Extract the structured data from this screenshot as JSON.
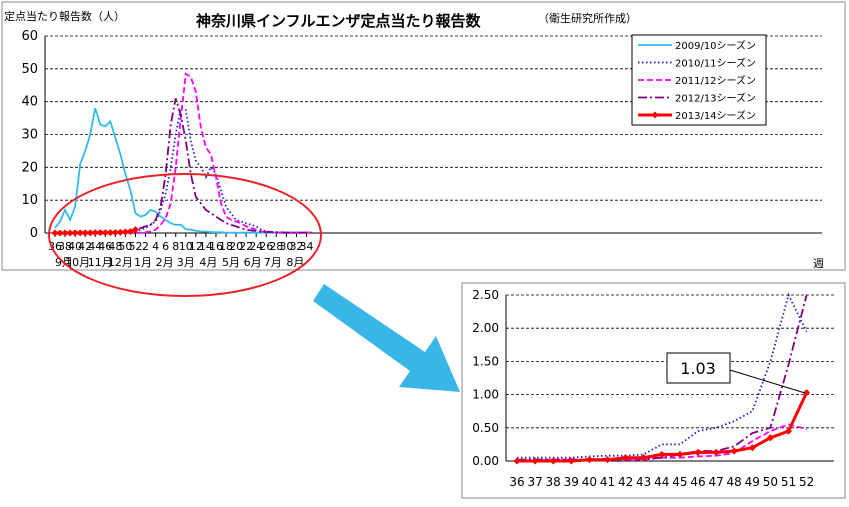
{
  "title": "神奈川県インフルエンザ定点当たり報告数",
  "subtitle": "（衛生研究所作成）",
  "y_axis_label": "定点当たり報告数（人）",
  "x_axis_unit": "週",
  "callout_value": "1.03",
  "colors": {
    "s2009": "#33bbe8",
    "s2010": "#1f1fbf",
    "s2011": "#ff00ff",
    "s2012": "#800080",
    "s2013": "#ff0000",
    "arrow": "#38b6e8",
    "ellipse": "#e8242a"
  },
  "chart_data": [
    {
      "type": "line",
      "x_ticks": [
        "36",
        "38",
        "40",
        "42",
        "44",
        "46",
        "48",
        "50",
        "52",
        "2",
        "4",
        "6",
        "8",
        "10",
        "12",
        "14",
        "16",
        "18",
        "20",
        "22",
        "24",
        "26",
        "28",
        "30",
        "32",
        "34"
      ],
      "month_labels": [
        {
          "label": "9月",
          "week_index": 0
        },
        {
          "label": "10月",
          "week_index": 4.5
        },
        {
          "label": "11月",
          "week_index": 9
        },
        {
          "label": "12月",
          "week_index": 13
        },
        {
          "label": "1月",
          "week_index": 17.5
        },
        {
          "label": "2月",
          "week_index": 21.8
        },
        {
          "label": "3月",
          "week_index": 26
        },
        {
          "label": "4月",
          "week_index": 30.5
        },
        {
          "label": "5月",
          "week_index": 35
        },
        {
          "label": "6月",
          "week_index": 39.3
        },
        {
          "label": "7月",
          "week_index": 43.3
        },
        {
          "label": "8月",
          "week_index": 47.8
        }
      ],
      "ylim": [
        0,
        60
      ],
      "y_ticks": [
        0,
        10,
        20,
        30,
        40,
        50,
        60
      ],
      "grid": true,
      "legend_position": "top-right",
      "series": [
        {
          "name": "2009/10シーズン",
          "color_key": "s2009",
          "style": "solid",
          "values": [
            1.5,
            3.5,
            7,
            4,
            8,
            21,
            25,
            30,
            38,
            33,
            32.5,
            34,
            29,
            24,
            18,
            13,
            6,
            5,
            5.5,
            7,
            6.5,
            5,
            4,
            3,
            2.5,
            2.5,
            1.2,
            1,
            0.7,
            0.5,
            0.4,
            0.3,
            0.2,
            0.2,
            0.1,
            0.1,
            0.1,
            0.1,
            0.1,
            0.1,
            0.1,
            0.1,
            0.1,
            0.1,
            0.1,
            0.1,
            0.1,
            0.1,
            0.1,
            0.1,
            0.1,
            0.1
          ]
        },
        {
          "name": "2010/11シーズン",
          "color_key": "s2010",
          "style": "dotted",
          "values": [
            0,
            0,
            0,
            0,
            0,
            0,
            0,
            0,
            0,
            0,
            0,
            0.1,
            0.1,
            0.2,
            0.3,
            0.5,
            0.7,
            1,
            1.5,
            2.5,
            3.5,
            7,
            12,
            20,
            30,
            38,
            37.5,
            28,
            22,
            20,
            17,
            20,
            18,
            13,
            8,
            6,
            4,
            3.5,
            3,
            2.5,
            2,
            1,
            0.5,
            0.3,
            0.2,
            0.1,
            0.1,
            0.1,
            0.1,
            0.1,
            0.1,
            0.1
          ]
        },
        {
          "name": "2011/12シーズン",
          "color_key": "s2011",
          "style": "dashed",
          "values": [
            0,
            0,
            0,
            0,
            0,
            0,
            0,
            0,
            0,
            0,
            0,
            0,
            0,
            0,
            0,
            0,
            0,
            0.1,
            0.2,
            0.5,
            1,
            2.5,
            4.5,
            9,
            20,
            35,
            48.5,
            47.5,
            43,
            32,
            26,
            24,
            17,
            9,
            5,
            4,
            3.5,
            3,
            2,
            1.5,
            1,
            0.5,
            0.3,
            0.2,
            0.1,
            0.1,
            0.1,
            0.1,
            0.1,
            0.1,
            0.1,
            0.1
          ]
        },
        {
          "name": "2012/13シーズン",
          "color_key": "s2012",
          "style": "dashdot",
          "values": [
            0,
            0,
            0,
            0,
            0,
            0,
            0,
            0,
            0,
            0,
            0,
            0,
            0,
            0,
            0,
            0.5,
            1,
            1.5,
            2,
            2.5,
            4,
            8,
            18,
            33,
            41,
            36,
            28,
            18,
            11,
            9,
            7,
            6,
            5,
            4,
            3,
            2.5,
            2,
            1.5,
            1,
            0.8,
            0.6,
            0.4,
            0.3,
            0.3,
            0.2,
            0.2,
            0.1,
            0.1,
            0.1,
            0.1,
            0.1,
            0.1
          ]
        },
        {
          "name": "2013/14シーズン",
          "color_key": "s2013",
          "style": "solid-marker",
          "values": [
            0,
            0,
            0,
            0,
            0.02,
            0.02,
            0.05,
            0.05,
            0.1,
            0.1,
            0.13,
            0.13,
            0.15,
            0.2,
            0.35,
            0.45,
            1.03
          ]
        }
      ]
    },
    {
      "type": "line",
      "categories": [
        "36",
        "37",
        "38",
        "39",
        "40",
        "41",
        "42",
        "43",
        "44",
        "45",
        "46",
        "47",
        "48",
        "49",
        "50",
        "51",
        "52"
      ],
      "ylim": [
        0,
        2.5
      ],
      "y_ticks": [
        "0.00",
        "0.50",
        "1.00",
        "1.50",
        "2.00",
        "2.50"
      ],
      "grid": true,
      "series": [
        {
          "color_key": "s2010",
          "style": "dotted",
          "values": [
            0.05,
            0.05,
            0.05,
            0.05,
            0.07,
            0.08,
            0.08,
            0.1,
            0.25,
            0.25,
            0.45,
            0.5,
            0.6,
            0.75,
            1.5,
            2.5,
            1.95
          ]
        },
        {
          "color_key": "s2011",
          "style": "dashed",
          "values": [
            0.01,
            0.01,
            0.02,
            0.02,
            0.02,
            0.02,
            0.02,
            0.02,
            0.05,
            0.05,
            0.07,
            0.08,
            0.12,
            0.3,
            0.45,
            0.55,
            0.48
          ]
        },
        {
          "color_key": "s2012",
          "style": "dashdot",
          "values": [
            0.02,
            0.02,
            0.02,
            0.02,
            0.03,
            0.03,
            0.03,
            0.03,
            0.05,
            0.1,
            0.15,
            0.15,
            0.22,
            0.42,
            0.5,
            1.45,
            2.5
          ]
        },
        {
          "color_key": "s2013",
          "style": "solid-marker",
          "values": [
            0,
            0,
            0,
            0,
            0.02,
            0.02,
            0.05,
            0.05,
            0.1,
            0.1,
            0.13,
            0.13,
            0.15,
            0.2,
            0.35,
            0.45,
            1.03
          ]
        }
      ]
    }
  ]
}
